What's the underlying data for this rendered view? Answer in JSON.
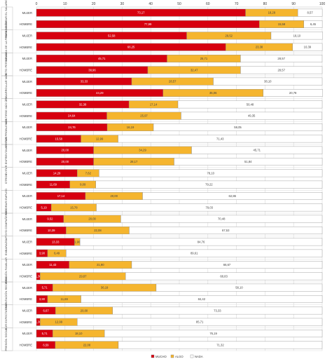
{
  "chart_data": {
    "type": "bar",
    "orientation": "horizontal",
    "stacked": true,
    "xlim": [
      0,
      100
    ],
    "xticks": [
      0,
      10,
      20,
      30,
      40,
      50,
      60,
      70,
      80,
      90,
      100
    ],
    "grid": true,
    "legend_position": "bottom",
    "colors": {
      "MUCHO": "#d7000f",
      "ALGO": "#f5b52e",
      "NADA": "#ffffff"
    },
    "series_names": [
      "MUCHO",
      "ALGO",
      "NADA"
    ],
    "groups": [
      {
        "label": "PARA MEJORAR EL SALARIO",
        "bars": [
          {
            "label": "MUJER",
            "values": [
              73.17,
              18.28,
              8.57
            ],
            "texts": [
              "73,17",
              "18,28",
              "8,57"
            ]
          },
          {
            "label": "HOMBRE",
            "values": [
              77.99,
              15.58,
              6.45
            ],
            "texts": [
              "77,99",
              "15,58",
              "6,45"
            ]
          }
        ]
      },
      {
        "label": "MEJORA DE LA PROYECCIÓN",
        "bars": [
          {
            "label": "MUJER",
            "values": [
              52.58,
              29.52,
              18.1
            ],
            "texts": [
              "52,58",
              "29,52",
              "18,10"
            ]
          },
          {
            "label": "HOMBRE",
            "values": [
              66.25,
              23.38,
              10.39
            ],
            "texts": [
              "66,25",
              "23,38",
              "10,39"
            ]
          }
        ]
      },
      {
        "label": "RETO PERSONAL",
        "bars": [
          {
            "label": "MUJER",
            "values": [
              45.71,
              25.71,
              28.57
            ],
            "texts": [
              "45,71",
              "25,71",
              "28,57"
            ]
          },
          {
            "label": "HOMBRE",
            "values": [
              38.96,
              32.47,
              28.57
            ],
            "texts": [
              "38,96",
              "32,47",
              "28,57"
            ]
          }
        ]
      },
      {
        "label": "DESARROLLAR MÁS",
        "bars": [
          {
            "label": "MUJER",
            "values": [
              33.33,
              28.57,
              38.1
            ],
            "texts": [
              "33,33",
              "28,57",
              "38,10"
            ]
          },
          {
            "label": "HOMBRE",
            "values": [
              44.29,
              35.06,
              20.78
            ],
            "texts": [
              "44,29",
              "35,06",
              "20,78"
            ]
          }
        ]
      },
      {
        "label": "SENTIRSE MÁS ÚTIL",
        "bars": [
          {
            "label": "MUJER",
            "values": [
              32.38,
              17.14,
              50.48
            ],
            "texts": [
              "32,38",
              "17,14",
              "50,48"
            ]
          },
          {
            "label": "HOMBRE",
            "values": [
              24.64,
              25.97,
              49.35
            ],
            "texts": [
              "24,64",
              "25,97",
              "49,35"
            ]
          }
        ]
      },
      {
        "label": "EVITAR PROBLEMAS",
        "bars": [
          {
            "label": "MUJER",
            "values": [
              24.76,
              16.19,
              59.05
            ],
            "texts": [
              "24,76",
              "16,19",
              "59,05"
            ]
          },
          {
            "label": "HOMBRE",
            "values": [
              15.58,
              12.99,
              71.43
            ],
            "texts": [
              "15,58",
              "12,99",
              "71,43"
            ]
          }
        ]
      },
      {
        "label": "EVITAR ENFRENTAMIENTOS",
        "bars": [
          {
            "label": "MUJER",
            "values": [
              20.0,
              34.29,
              45.71
            ],
            "texts": [
              "20,00",
              "34,29",
              "45,71"
            ]
          },
          {
            "label": "HOMBRE",
            "values": [
              20.0,
              28.17,
              51.84
            ],
            "texts": [
              "20,00",
              "28,17",
              "51,84"
            ]
          }
        ]
      },
      {
        "label": "OTROS",
        "bars": [
          {
            "label": "MUJER",
            "values": [
              14.29,
              7.62,
              78.1
            ],
            "texts": [
              "14,29",
              "7,62",
              "78,10"
            ]
          },
          {
            "label": "HOMBRE",
            "values": [
              11.69,
              9.09,
              79.22
            ],
            "texts": [
              "11,69",
              "9,09",
              "79,22"
            ]
          }
        ]
      },
      {
        "label": "MEJORAR EMPLEO",
        "bars": [
          {
            "label": "MUJER",
            "values": [
              17.14,
              20.0,
              62.86
            ],
            "texts": [
              "17,14",
              "20,00",
              "62,86"
            ]
          },
          {
            "label": "HOMBRE",
            "values": [
              5.19,
              15.78,
              79.03
            ],
            "texts": [
              "5,19",
              "15,78",
              "79,03"
            ]
          }
        ]
      },
      {
        "label": "APOYO COMPAÑEROS",
        "bars": [
          {
            "label": "MUJER",
            "values": [
              9.52,
              20.0,
              70.48
            ],
            "texts": [
              "9,52",
              "20,00",
              "70,48"
            ]
          },
          {
            "label": "HOMBRE",
            "values": [
              10.39,
              22.08,
              67.53
            ],
            "texts": [
              "10,39",
              "22,08",
              "67,53"
            ]
          }
        ]
      },
      {
        "label": "EMBARAZO",
        "bars": [
          {
            "label": "MUJER",
            "values": [
              13.33,
              1.9,
              84.76
            ],
            "texts": [
              "13,33",
              "1,90",
              "84,76"
            ]
          },
          {
            "label": "HOMBRE",
            "values": [
              3.9,
              6.49,
              89.61
            ],
            "texts": [
              "3,90",
              "6,49",
              "89,61"
            ]
          }
        ]
      },
      {
        "label": "PRESIÓN FAMILIAR",
        "bars": [
          {
            "label": "MUJER",
            "values": [
              11.43,
              21.9,
              66.67
            ],
            "texts": [
              "11,43",
              "21,90",
              "66,67"
            ]
          },
          {
            "label": "HOMBRE",
            "values": [
              1.3,
              29.87,
              68.83
            ],
            "texts": [
              "1,30",
              "29,87",
              "68,83"
            ]
          }
        ]
      },
      {
        "label": "ORIENTACIÓN RECIBIDA",
        "bars": [
          {
            "label": "MUJER",
            "values": [
              5.71,
              36.19,
              58.1
            ],
            "texts": [
              "5,71",
              "36,19",
              "58,10"
            ]
          },
          {
            "label": "HOMBRE",
            "values": [
              3.9,
              11.69,
              84.42
            ],
            "texts": [
              "3,90",
              "11,69",
              "84,42"
            ]
          }
        ]
      },
      {
        "label": "POR EXPECTATIVAS",
        "bars": [
          {
            "label": "MUJER",
            "values": [
              6.67,
              20.0,
              73.33
            ],
            "texts": [
              "6,67",
              "20,00",
              "73,33"
            ]
          },
          {
            "label": "HOMBRE",
            "values": [
              1.3,
              12.99,
              85.71
            ],
            "texts": [
              "1,30",
              "12,99",
              "85,71"
            ]
          }
        ]
      },
      {
        "label": "PRESIÓN SOCIAL",
        "bars": [
          {
            "label": "MUJER",
            "values": [
              5.71,
              18.1,
              76.19
            ],
            "texts": [
              "5,71",
              "18,10",
              "76,19"
            ]
          },
          {
            "label": "HOMBRE",
            "values": [
              6.59,
              22.08,
              71.32
            ],
            "texts": [
              "6,59",
              "22,08",
              "71,32"
            ]
          }
        ]
      }
    ]
  }
}
